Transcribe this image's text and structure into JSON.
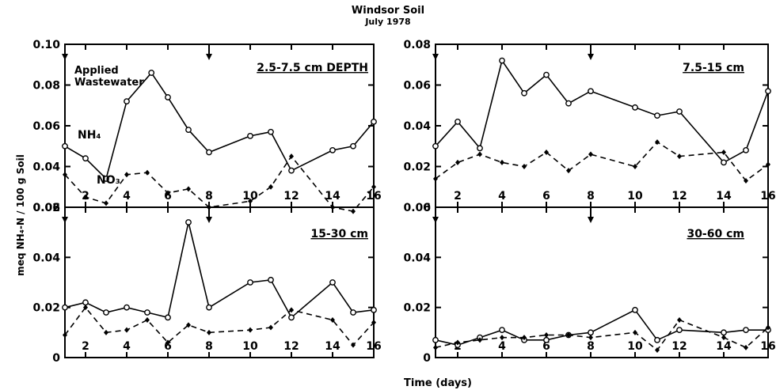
{
  "figure": {
    "title": "Windsor Soil",
    "subtitle": "July 1978",
    "xlabel": "Time (days)",
    "ylabel": "meq NH₄-N / 100 g Soil"
  },
  "chart_data": [
    {
      "type": "line",
      "title": "2.5-7.5 cm DEPTH",
      "xlim": [
        1,
        16
      ],
      "ylim": [
        0.02,
        0.1
      ],
      "yticks": [
        "0.02",
        "0.04",
        "0.06",
        "0.08",
        "0.10"
      ],
      "xticks": [
        "2",
        "4",
        "6",
        "8",
        "10",
        "12",
        "14",
        "16"
      ],
      "application_days": [
        1,
        8
      ],
      "annotations": {
        "applied": "Applied",
        "wastewater": "Wastewater",
        "nh4": "NH₄",
        "no3": "NO₃"
      },
      "series": [
        {
          "name": "NH₄",
          "style": "solid",
          "marker": "open-circle",
          "x": [
            1,
            2,
            3,
            4,
            5.2,
            6,
            7,
            8,
            10,
            11,
            12,
            14,
            15,
            16
          ],
          "y": [
            0.05,
            0.044,
            0.034,
            0.072,
            0.086,
            0.074,
            0.058,
            0.047,
            0.055,
            0.057,
            0.038,
            0.048,
            0.05,
            0.062
          ]
        },
        {
          "name": "NO₃",
          "style": "dashed",
          "marker": "filled-diamond",
          "x": [
            1,
            2,
            3,
            4,
            5,
            6,
            7,
            8,
            10,
            11,
            12,
            14,
            15,
            16
          ],
          "y": [
            0.036,
            0.025,
            0.022,
            0.036,
            0.037,
            0.027,
            0.029,
            0.02,
            0.023,
            0.03,
            0.045,
            0.02,
            0.018,
            0.03
          ]
        }
      ]
    },
    {
      "type": "line",
      "title": "7.5-15 cm",
      "xlim": [
        1,
        16
      ],
      "ylim": [
        0,
        0.08
      ],
      "yticks": [
        "0",
        "0.02",
        "0.04",
        "0.06",
        "0.08"
      ],
      "xticks": [
        "2",
        "4",
        "6",
        "8",
        "10",
        "12",
        "14",
        "16"
      ],
      "application_days": [
        1,
        8
      ],
      "series": [
        {
          "name": "NH₄",
          "style": "solid",
          "marker": "open-circle",
          "x": [
            1,
            2,
            3,
            4,
            5,
            6,
            7,
            8,
            10,
            11,
            12,
            14,
            15,
            16
          ],
          "y": [
            0.03,
            0.042,
            0.029,
            0.072,
            0.056,
            0.065,
            0.051,
            0.057,
            0.049,
            0.045,
            0.047,
            0.022,
            0.028,
            0.057
          ]
        },
        {
          "name": "NO₃",
          "style": "dashed",
          "marker": "filled-diamond",
          "x": [
            1,
            2,
            3,
            4,
            5,
            6,
            7,
            8,
            10,
            11,
            12,
            14,
            15,
            16
          ],
          "y": [
            0.014,
            0.022,
            0.026,
            0.022,
            0.02,
            0.027,
            0.018,
            0.026,
            0.02,
            0.032,
            0.025,
            0.027,
            0.013,
            0.021
          ]
        }
      ]
    },
    {
      "type": "line",
      "title": "15-30 cm",
      "xlim": [
        1,
        16
      ],
      "ylim": [
        0,
        0.06
      ],
      "yticks": [
        "0",
        "0.02",
        "0.04",
        "0.06"
      ],
      "xticks": [
        "2",
        "4",
        "6",
        "8",
        "10",
        "12",
        "14",
        "16"
      ],
      "application_days": [
        1,
        8
      ],
      "series": [
        {
          "name": "NH₄",
          "style": "solid",
          "marker": "open-circle",
          "x": [
            1,
            2,
            3,
            4,
            5,
            6,
            7,
            8,
            10,
            11,
            12,
            14,
            15,
            16
          ],
          "y": [
            0.02,
            0.022,
            0.018,
            0.02,
            0.018,
            0.016,
            0.054,
            0.02,
            0.03,
            0.031,
            0.016,
            0.03,
            0.018,
            0.019
          ]
        },
        {
          "name": "NO₃",
          "style": "dashed",
          "marker": "filled-diamond",
          "x": [
            1,
            2,
            3,
            4,
            5,
            6,
            7,
            8,
            10,
            11,
            12,
            14,
            15,
            16
          ],
          "y": [
            0.009,
            0.02,
            0.01,
            0.011,
            0.015,
            0.006,
            0.013,
            0.01,
            0.011,
            0.012,
            0.019,
            0.015,
            0.005,
            0.014
          ]
        }
      ]
    },
    {
      "type": "line",
      "title": "30-60 cm",
      "xlim": [
        1,
        16
      ],
      "ylim": [
        0,
        0.06
      ],
      "yticks": [
        "0",
        "0.02",
        "0.04",
        "0.06"
      ],
      "xticks": [
        "2",
        "4",
        "6",
        "8",
        "10",
        "12",
        "14",
        "16"
      ],
      "application_days": [
        1,
        8
      ],
      "series": [
        {
          "name": "NH₄",
          "style": "solid",
          "marker": "open-circle",
          "x": [
            1,
            2,
            3,
            4,
            5,
            6,
            7,
            8,
            10,
            11,
            12,
            14,
            15,
            16
          ],
          "y": [
            0.007,
            0.005,
            0.008,
            0.011,
            0.007,
            0.007,
            0.009,
            0.01,
            0.019,
            0.007,
            0.011,
            0.01,
            0.011,
            0.011
          ]
        },
        {
          "name": "NO₃",
          "style": "dashed",
          "marker": "filled-diamond",
          "x": [
            1,
            2,
            3,
            4,
            5,
            6,
            7,
            8,
            10,
            11,
            12,
            14,
            15,
            16
          ],
          "y": [
            0.004,
            0.006,
            0.007,
            0.008,
            0.008,
            0.009,
            0.009,
            0.008,
            0.01,
            0.003,
            0.015,
            0.008,
            0.004,
            0.012
          ]
        }
      ]
    }
  ]
}
